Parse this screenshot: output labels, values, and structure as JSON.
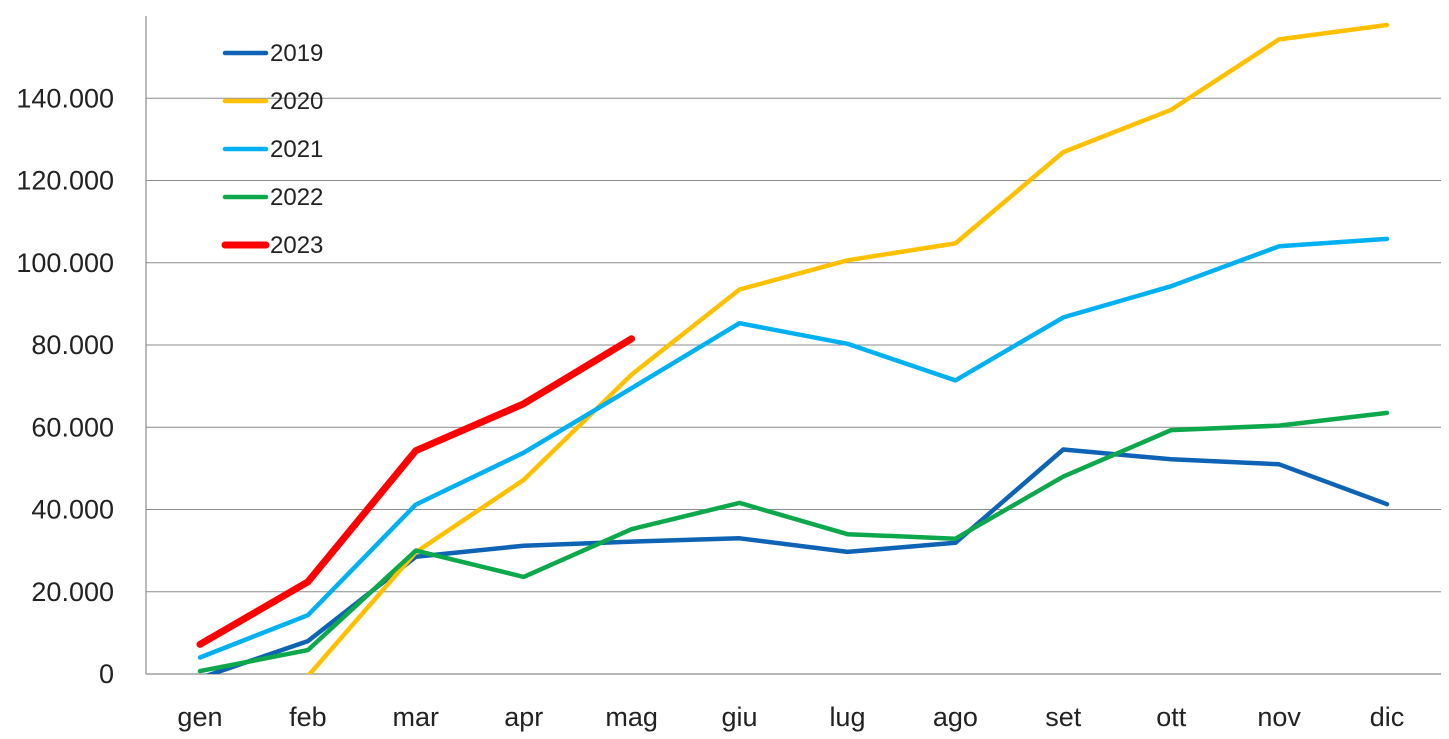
{
  "chart_data": {
    "type": "line",
    "categories": [
      "gen",
      "feb",
      "mar",
      "apr",
      "mag",
      "giu",
      "lug",
      "ago",
      "set",
      "ott",
      "nov",
      "dic"
    ],
    "ylim": [
      0,
      160000
    ],
    "yticks": [
      0,
      20000,
      40000,
      60000,
      80000,
      100000,
      120000,
      140000
    ],
    "ytick_labels": [
      "0",
      "20.000",
      "40.000",
      "60.000",
      "80.000",
      "100.000",
      "120.000",
      "140.000"
    ],
    "grid": true,
    "legend_position": "top-left",
    "series": [
      {
        "name": "2019",
        "color": "#0e63b5",
        "values": [
          -1000,
          8000,
          28500,
          31200,
          32200,
          33000,
          29700,
          31900,
          54600,
          52200,
          51000,
          41300
        ]
      },
      {
        "name": "2020",
        "color": "#ffc000",
        "values": [
          null,
          -500,
          29600,
          47200,
          72800,
          93500,
          100600,
          104700,
          126900,
          137200,
          154300,
          157800
        ]
      },
      {
        "name": "2021",
        "color": "#00b0f0",
        "values": [
          4000,
          14300,
          41200,
          53800,
          69500,
          85300,
          80300,
          71400,
          86700,
          94300,
          104000,
          105800
        ]
      },
      {
        "name": "2022",
        "color": "#0da84b",
        "values": [
          700,
          5800,
          30000,
          23600,
          35200,
          41600,
          34000,
          32900,
          48000,
          59300,
          60400,
          63500
        ]
      },
      {
        "name": "2023",
        "color": "#ff0000",
        "values": [
          7200,
          22400,
          54300,
          65700,
          81500,
          null,
          null,
          null,
          null,
          null,
          null,
          null
        ]
      }
    ]
  }
}
